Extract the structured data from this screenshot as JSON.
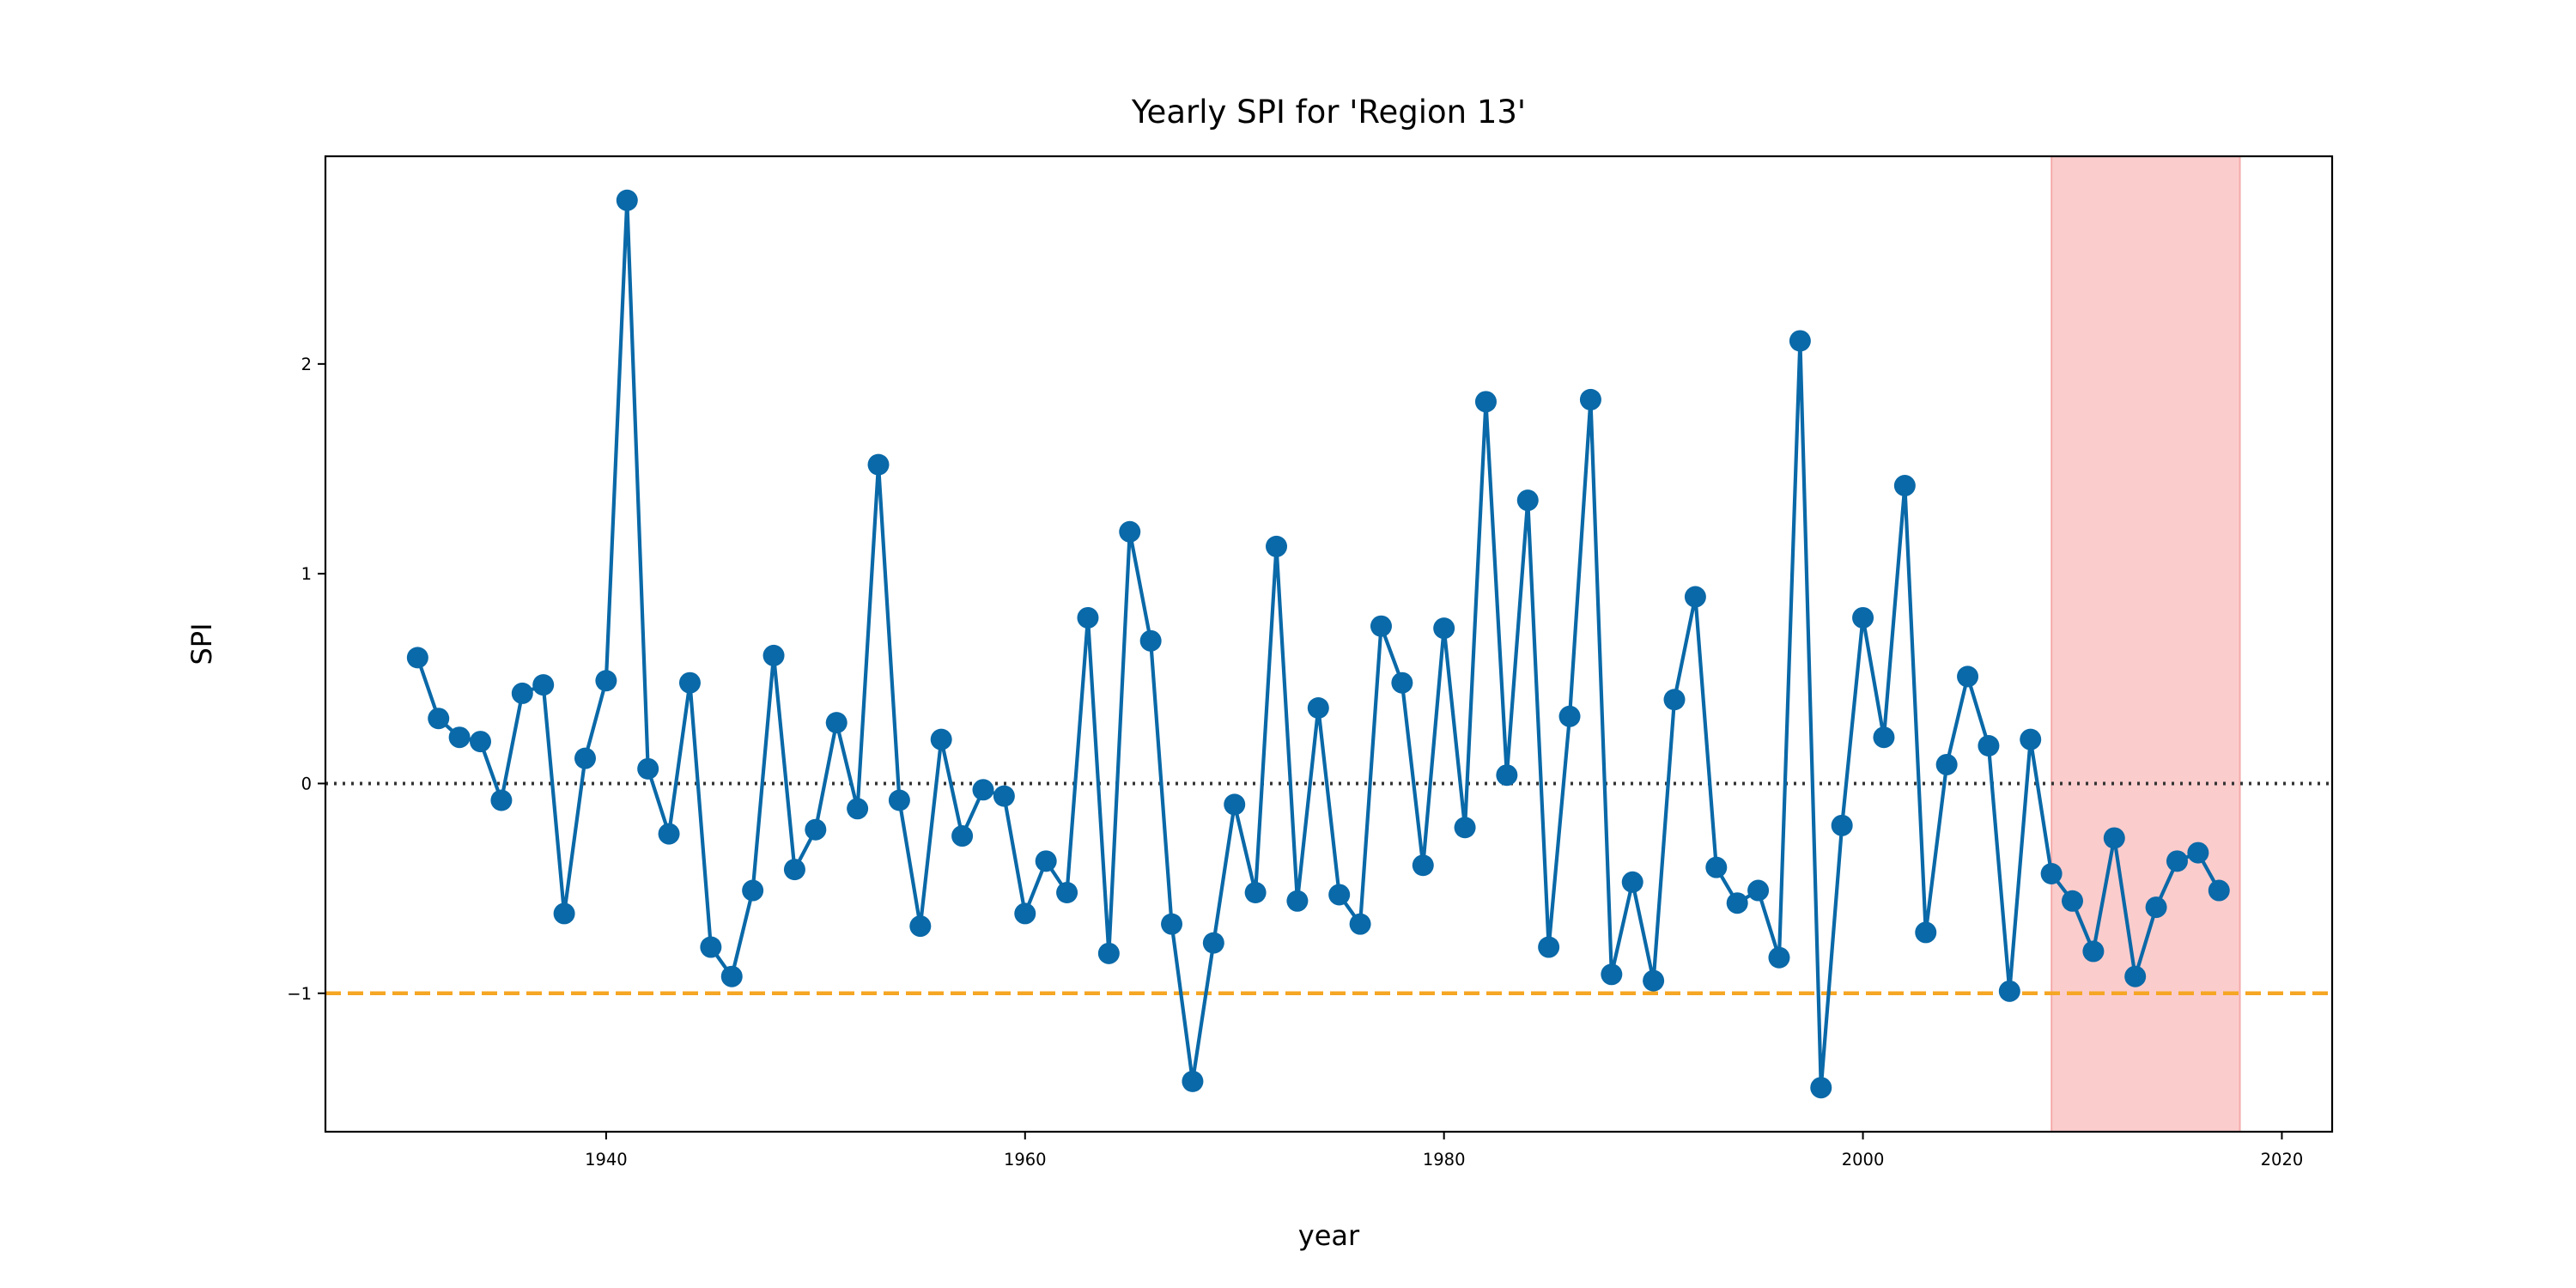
{
  "chart_data": {
    "type": "line",
    "title": "Yearly SPI for 'Region 13'",
    "xlabel": "year",
    "ylabel": "SPI",
    "xlim": [
      1926.6,
      2022.4
    ],
    "ylim": [
      -1.66,
      2.99
    ],
    "xticks": [
      1940,
      1960,
      1980,
      2000,
      2020
    ],
    "xtick_labels": [
      "1940",
      "1960",
      "1980",
      "2000",
      "2020"
    ],
    "yticks": [
      -1,
      0,
      1,
      2
    ],
    "ytick_labels": [
      "−1",
      "0",
      "1",
      "2"
    ],
    "grid": false,
    "legend": "none",
    "series": [
      {
        "color": "#0a69a8",
        "marker": "circle",
        "x": [
          1931,
          1932,
          1933,
          1934,
          1935,
          1936,
          1937,
          1938,
          1939,
          1940,
          1941,
          1942,
          1943,
          1944,
          1945,
          1946,
          1947,
          1948,
          1949,
          1950,
          1951,
          1952,
          1953,
          1954,
          1955,
          1956,
          1957,
          1958,
          1959,
          1960,
          1961,
          1962,
          1963,
          1964,
          1965,
          1966,
          1967,
          1968,
          1969,
          1970,
          1971,
          1972,
          1973,
          1974,
          1975,
          1976,
          1977,
          1978,
          1979,
          1980,
          1981,
          1982,
          1983,
          1984,
          1985,
          1986,
          1987,
          1988,
          1989,
          1990,
          1991,
          1992,
          1993,
          1994,
          1995,
          1996,
          1997,
          1998,
          1999,
          2000,
          2001,
          2002,
          2003,
          2004,
          2005,
          2006,
          2007,
          2008,
          2009,
          2010,
          2011,
          2012,
          2013,
          2014,
          2015,
          2016,
          2017
        ],
        "y": [
          0.6,
          0.31,
          0.22,
          0.2,
          -0.08,
          0.43,
          0.47,
          -0.62,
          0.12,
          0.49,
          2.78,
          0.07,
          -0.24,
          0.48,
          -0.78,
          -0.92,
          -0.51,
          0.61,
          -0.41,
          -0.22,
          0.29,
          -0.12,
          1.52,
          -0.08,
          -0.68,
          0.21,
          -0.25,
          -0.03,
          -0.06,
          -0.62,
          -0.37,
          -0.52,
          0.79,
          -0.81,
          1.2,
          0.68,
          -0.67,
          -1.42,
          -0.76,
          -0.1,
          -0.52,
          1.13,
          -0.56,
          0.36,
          -0.53,
          -0.67,
          0.75,
          0.48,
          -0.39,
          0.74,
          -0.21,
          1.82,
          0.04,
          1.35,
          -0.78,
          0.32,
          1.83,
          -0.91,
          -0.47,
          -0.94,
          0.4,
          0.89,
          -0.4,
          -0.57,
          -0.51,
          -0.83,
          2.11,
          -1.45,
          -0.2,
          0.79,
          0.22,
          1.42,
          -0.71,
          0.09,
          0.51,
          0.18,
          -0.99,
          0.21,
          -0.43,
          -0.56,
          -0.8,
          -0.26,
          -0.92,
          -0.59,
          -0.37,
          -0.33,
          -0.51
        ]
      }
    ],
    "reference_lines": [
      {
        "axis": "y",
        "value": 0,
        "style": "dotted",
        "color": "#333333"
      },
      {
        "axis": "y",
        "value": -1,
        "style": "dashed",
        "color": "#f5a623"
      }
    ],
    "shaded_regions": [
      {
        "axis": "x",
        "from": 2009,
        "to": 2018,
        "color": "#f8a3a3"
      }
    ]
  }
}
